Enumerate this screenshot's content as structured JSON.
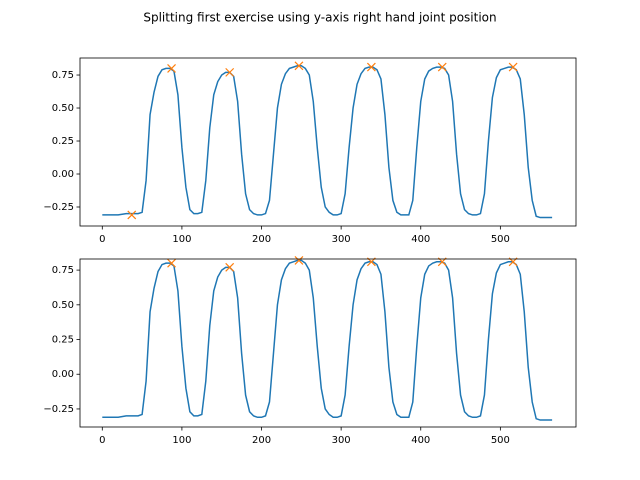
{
  "title": "Splitting first exercise using y-axis right hand joint position",
  "chart_data": [
    {
      "type": "line",
      "x": [
        0,
        10,
        20,
        30,
        40,
        45,
        50,
        55,
        60,
        65,
        70,
        75,
        80,
        85,
        90,
        95,
        100,
        105,
        110,
        115,
        120,
        125,
        130,
        135,
        140,
        145,
        150,
        155,
        160,
        165,
        170,
        175,
        180,
        185,
        190,
        195,
        200,
        205,
        210,
        215,
        220,
        225,
        230,
        235,
        240,
        245,
        250,
        255,
        260,
        265,
        270,
        275,
        280,
        285,
        290,
        295,
        300,
        305,
        310,
        315,
        320,
        325,
        330,
        335,
        340,
        345,
        350,
        355,
        360,
        365,
        370,
        375,
        380,
        385,
        390,
        395,
        400,
        405,
        410,
        415,
        420,
        425,
        430,
        435,
        440,
        445,
        450,
        455,
        460,
        465,
        470,
        475,
        480,
        485,
        490,
        495,
        500,
        505,
        510,
        515,
        520,
        525,
        530,
        535,
        540,
        545,
        550,
        555,
        560,
        565
      ],
      "series": [
        {
          "color": "#1f77b4",
          "values": [
            -0.31,
            -0.31,
            -0.31,
            -0.3,
            -0.3,
            -0.3,
            -0.29,
            -0.05,
            0.45,
            0.62,
            0.74,
            0.79,
            0.8,
            0.8,
            0.78,
            0.6,
            0.2,
            -0.1,
            -0.27,
            -0.3,
            -0.3,
            -0.29,
            -0.05,
            0.35,
            0.6,
            0.7,
            0.75,
            0.77,
            0.77,
            0.74,
            0.55,
            0.15,
            -0.15,
            -0.27,
            -0.3,
            -0.31,
            -0.31,
            -0.3,
            -0.2,
            0.15,
            0.5,
            0.68,
            0.76,
            0.8,
            0.81,
            0.82,
            0.82,
            0.8,
            0.75,
            0.55,
            0.2,
            -0.1,
            -0.25,
            -0.29,
            -0.31,
            -0.31,
            -0.3,
            -0.15,
            0.2,
            0.5,
            0.68,
            0.76,
            0.8,
            0.81,
            0.81,
            0.79,
            0.72,
            0.45,
            0.05,
            -0.2,
            -0.29,
            -0.31,
            -0.31,
            -0.31,
            -0.2,
            0.2,
            0.55,
            0.72,
            0.78,
            0.8,
            0.81,
            0.81,
            0.8,
            0.75,
            0.55,
            0.15,
            -0.15,
            -0.27,
            -0.3,
            -0.31,
            -0.31,
            -0.3,
            -0.15,
            0.25,
            0.58,
            0.73,
            0.79,
            0.8,
            0.81,
            0.81,
            0.79,
            0.72,
            0.45,
            0.05,
            -0.2,
            -0.32,
            -0.33,
            -0.33,
            -0.33,
            -0.33
          ]
        },
        {
          "color": "#ff7f0e",
          "marker": "x",
          "x": [
            37,
            87,
            160,
            247,
            338,
            427,
            516
          ],
          "values": [
            -0.31,
            0.8,
            0.77,
            0.82,
            0.81,
            0.81,
            0.81
          ]
        }
      ],
      "xlim": [
        -28,
        595
      ],
      "xticks": [
        0,
        100,
        200,
        300,
        400,
        500
      ],
      "ylim": [
        -0.394,
        0.879
      ],
      "yticks": [
        {
          "value": -0.25,
          "label": "−0.25"
        },
        {
          "value": 0,
          "label": "0.00"
        },
        0.25,
        {
          "value": 0.5,
          "label": "0.50"
        },
        0.75
      ]
    },
    {
      "type": "line",
      "x": [
        0,
        10,
        20,
        30,
        40,
        45,
        50,
        55,
        60,
        65,
        70,
        75,
        80,
        85,
        90,
        95,
        100,
        105,
        110,
        115,
        120,
        125,
        130,
        135,
        140,
        145,
        150,
        155,
        160,
        165,
        170,
        175,
        180,
        185,
        190,
        195,
        200,
        205,
        210,
        215,
        220,
        225,
        230,
        235,
        240,
        245,
        250,
        255,
        260,
        265,
        270,
        275,
        280,
        285,
        290,
        295,
        300,
        305,
        310,
        315,
        320,
        325,
        330,
        335,
        340,
        345,
        350,
        355,
        360,
        365,
        370,
        375,
        380,
        385,
        390,
        395,
        400,
        405,
        410,
        415,
        420,
        425,
        430,
        435,
        440,
        445,
        450,
        455,
        460,
        465,
        470,
        475,
        480,
        485,
        490,
        495,
        500,
        505,
        510,
        515,
        520,
        525,
        530,
        535,
        540,
        545,
        550,
        555,
        560,
        565
      ],
      "series": [
        {
          "color": "#1f77b4",
          "values": [
            -0.31,
            -0.31,
            -0.31,
            -0.3,
            -0.3,
            -0.3,
            -0.29,
            -0.05,
            0.45,
            0.62,
            0.74,
            0.79,
            0.8,
            0.8,
            0.78,
            0.6,
            0.2,
            -0.1,
            -0.27,
            -0.3,
            -0.3,
            -0.29,
            -0.05,
            0.35,
            0.6,
            0.7,
            0.75,
            0.77,
            0.77,
            0.74,
            0.55,
            0.15,
            -0.15,
            -0.27,
            -0.3,
            -0.31,
            -0.31,
            -0.3,
            -0.2,
            0.15,
            0.5,
            0.68,
            0.76,
            0.8,
            0.81,
            0.82,
            0.82,
            0.8,
            0.75,
            0.55,
            0.2,
            -0.1,
            -0.25,
            -0.29,
            -0.31,
            -0.31,
            -0.3,
            -0.15,
            0.2,
            0.5,
            0.68,
            0.76,
            0.8,
            0.81,
            0.81,
            0.79,
            0.72,
            0.45,
            0.05,
            -0.2,
            -0.29,
            -0.31,
            -0.31,
            -0.31,
            -0.2,
            0.2,
            0.55,
            0.72,
            0.78,
            0.8,
            0.81,
            0.81,
            0.8,
            0.75,
            0.55,
            0.15,
            -0.15,
            -0.27,
            -0.3,
            -0.31,
            -0.31,
            -0.3,
            -0.15,
            0.25,
            0.58,
            0.73,
            0.79,
            0.8,
            0.81,
            0.81,
            0.79,
            0.72,
            0.45,
            0.05,
            -0.2,
            -0.32,
            -0.33,
            -0.33,
            -0.33,
            -0.33
          ]
        },
        {
          "color": "#ff7f0e",
          "marker": "x",
          "x": [
            87,
            160,
            247,
            338,
            427,
            516
          ],
          "values": [
            0.8,
            0.77,
            0.82,
            0.81,
            0.81,
            0.81
          ]
        }
      ],
      "xlim": [
        -28,
        595
      ],
      "xticks": [
        0,
        100,
        200,
        300,
        400,
        500
      ],
      "ylim": [
        -0.38,
        0.83
      ],
      "yticks": [
        {
          "value": -0.25,
          "label": "−0.25"
        },
        {
          "value": 0,
          "label": "0.00"
        },
        0.25,
        {
          "value": 0.5,
          "label": "0.50"
        },
        0.75
      ]
    }
  ]
}
